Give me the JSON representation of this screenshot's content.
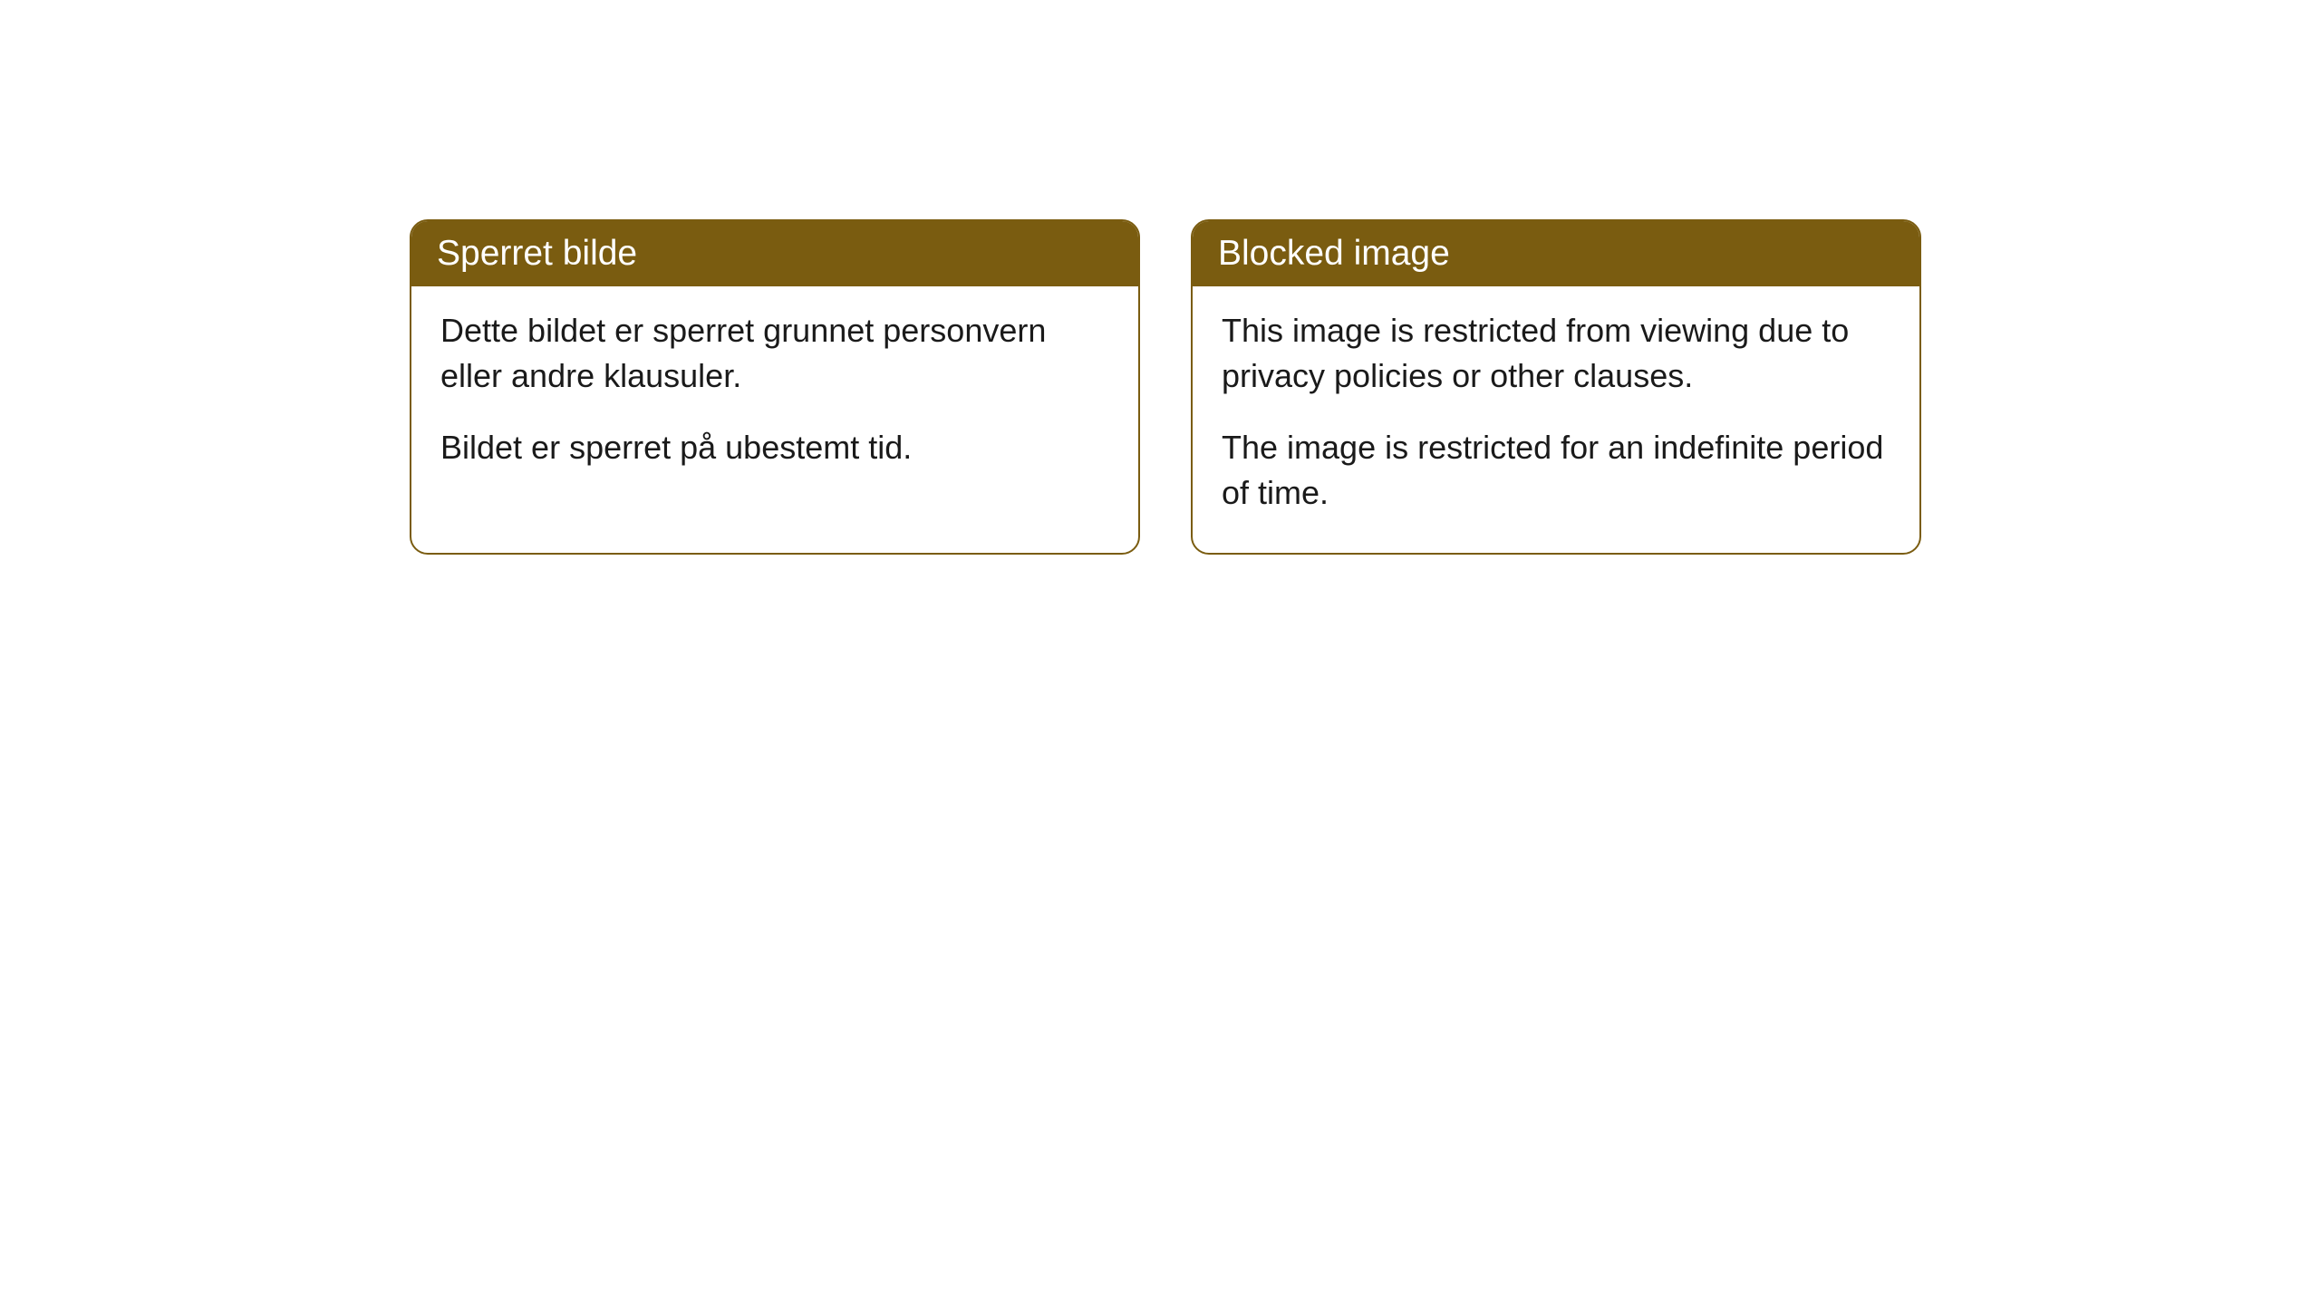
{
  "cards": [
    {
      "title": "Sperret bilde",
      "paragraph1": "Dette bildet er sperret grunnet personvern eller andre klausuler.",
      "paragraph2": "Bildet er sperret på ubestemt tid."
    },
    {
      "title": "Blocked image",
      "paragraph1": "This image is restricted from viewing due to privacy policies or other clauses.",
      "paragraph2": "The image is restricted for an indefinite period of time."
    }
  ],
  "style": {
    "header_bg": "#7a5c10",
    "header_text_color": "#ffffff",
    "border_color": "#7a5c10",
    "body_bg": "#ffffff",
    "body_text_color": "#1a1a1a",
    "border_radius": 20,
    "header_fontsize": 39,
    "body_fontsize": 36
  }
}
